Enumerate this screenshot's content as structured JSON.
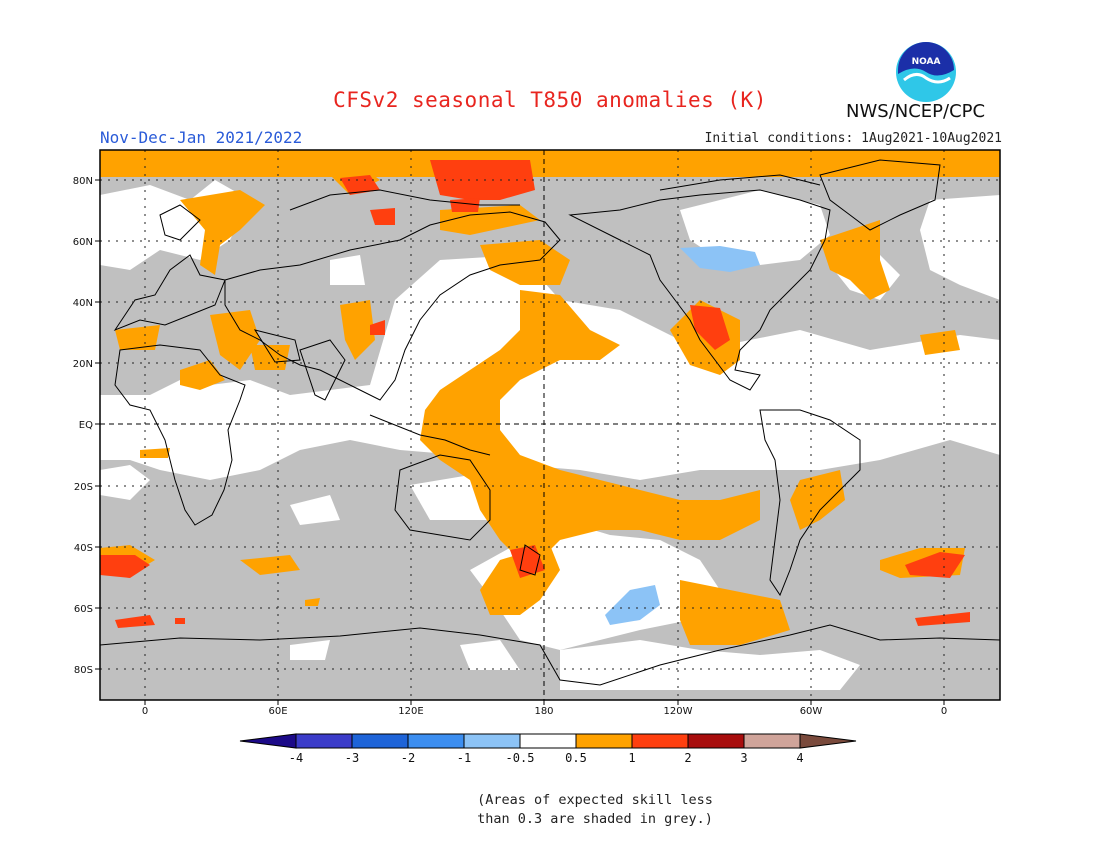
{
  "header": {
    "title": "CFSv2 seasonal T850 anomalies (K)",
    "agency": "NWS/NCEP/CPC",
    "period": "Nov-Dec-Jan 2021/2022",
    "initial_conditions": "Initial conditions: 1Aug2021-10Aug2021"
  },
  "logo": {
    "text": "NOAA",
    "icon": "noaa-logo-icon"
  },
  "map": {
    "projection": "cylindrical equidistant",
    "lat_labels": [
      "80N",
      "60N",
      "40N",
      "20N",
      "EQ",
      "20S",
      "40S",
      "60S",
      "80S"
    ],
    "lon_labels": [
      "0",
      "60E",
      "120E",
      "180",
      "120W",
      "60W",
      "0"
    ],
    "center_longitude": "180",
    "colors": {
      "grey_skill_mask": "#c0c0c0",
      "ocean_background": "#ffffff",
      "coastline": "#000000"
    }
  },
  "colorbar": {
    "labels": [
      "-4",
      "-3",
      "-2",
      "-1",
      "-0.5",
      "0.5",
      "1",
      "2",
      "3",
      "4"
    ],
    "colors": [
      "#1c0a88",
      "#3b3cc9",
      "#1e64d8",
      "#3c8ef0",
      "#8cc3f6",
      "#ffffff",
      "#ffa200",
      "#ff3f0f",
      "#a80d0d",
      "#d0a49a",
      "#7a4a3c"
    ]
  },
  "footnote": {
    "line1": "(Areas of expected skill less",
    "line2": "than 0.3 are shaded in grey.)"
  }
}
